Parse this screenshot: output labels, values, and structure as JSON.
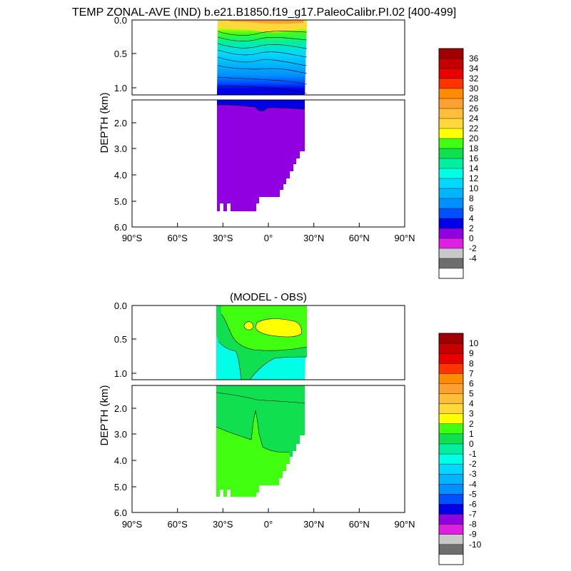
{
  "title": "TEMP ZONAL-AVE (IND) b.e21.B1850.f19_g17.PaleoCalibr.PI.02 [400-499]",
  "chart_data": [
    {
      "type": "heatmap",
      "panel": "model",
      "title": "",
      "ylabel": "DEPTH (km)",
      "xlabel": "",
      "xlim": [
        -90,
        90
      ],
      "ylim": [
        6.0,
        0.0
      ],
      "y_break_km": 1.1,
      "x_ticks": [
        "90°S",
        "60°S",
        "30°S",
        "0°",
        "30°N",
        "60°N",
        "90°N"
      ],
      "y_ticks_upper": [
        "0.0",
        "0.5",
        "1.0"
      ],
      "y_ticks_lower": [
        "2.0",
        "3.0",
        "4.0",
        "5.0",
        "6.0"
      ],
      "data_extent": {
        "lat_min": -33,
        "lat_max": 25
      },
      "profile": [
        {
          "depth": 0.0,
          "temp": 29
        },
        {
          "depth": 0.05,
          "temp": 26
        },
        {
          "depth": 0.1,
          "temp": 23
        },
        {
          "depth": 0.2,
          "temp": 19
        },
        {
          "depth": 0.3,
          "temp": 16
        },
        {
          "depth": 0.45,
          "temp": 13
        },
        {
          "depth": 0.6,
          "temp": 11
        },
        {
          "depth": 0.8,
          "temp": 9
        },
        {
          "depth": 1.0,
          "temp": 7
        },
        {
          "depth": 1.1,
          "temp": 6
        },
        {
          "depth": 1.4,
          "temp": 4.5
        },
        {
          "depth": 6.0,
          "temp": 2
        }
      ],
      "colorbar": {
        "levels": [
          "-4",
          "-2",
          "0",
          "2",
          "4",
          "6",
          "8",
          "10",
          "12",
          "14",
          "16",
          "18",
          "20",
          "22",
          "24",
          "26",
          "28",
          "30",
          "32",
          "34",
          "36"
        ],
        "colors": [
          "#ffffff",
          "#6e6e6e",
          "#c8c8c8",
          "#e020e0",
          "#9000e0",
          "#0000e8",
          "#0050ff",
          "#0090ff",
          "#00b4ff",
          "#00d8ff",
          "#00ffe6",
          "#00f0a0",
          "#10e050",
          "#40ff10",
          "#ffff00",
          "#ffd93a",
          "#ffbe3a",
          "#ffa030",
          "#ff8c00",
          "#ff3300",
          "#e80000",
          "#c40000",
          "#a00000"
        ]
      }
    },
    {
      "type": "heatmap",
      "panel": "difference",
      "title": "(MODEL - OBS)",
      "ylabel": "DEPTH (km)",
      "xlabel": "",
      "xlim": [
        -90,
        90
      ],
      "ylim": [
        6.0,
        0.0
      ],
      "y_break_km": 1.1,
      "x_ticks": [
        "90°S",
        "60°S",
        "30°S",
        "0°",
        "30°N",
        "60°N",
        "90°N"
      ],
      "y_ticks_upper": [
        "0.0",
        "0.5",
        "1.0"
      ],
      "y_ticks_lower": [
        "2.0",
        "3.0",
        "4.0",
        "5.0",
        "6.0"
      ],
      "data_extent": {
        "lat_min": -33,
        "lat_max": 25
      },
      "colorbar": {
        "levels": [
          "-10",
          "-9",
          "-8",
          "-7",
          "-6",
          "-5",
          "-4",
          "-3",
          "-2",
          "-1",
          "0",
          "1",
          "2",
          "3",
          "4",
          "5",
          "6",
          "7",
          "8",
          "9",
          "10"
        ],
        "colors": [
          "#ffffff",
          "#6e6e6e",
          "#c8c8c8",
          "#e020e0",
          "#9000e0",
          "#0000e8",
          "#0050ff",
          "#0090ff",
          "#00b4ff",
          "#00d8ff",
          "#00ffe6",
          "#00f0a0",
          "#10e050",
          "#40ff10",
          "#ffff00",
          "#ffd93a",
          "#ffbe3a",
          "#ffa030",
          "#ff8c00",
          "#ff3300",
          "#e80000",
          "#c40000",
          "#a00000"
        ]
      }
    }
  ]
}
